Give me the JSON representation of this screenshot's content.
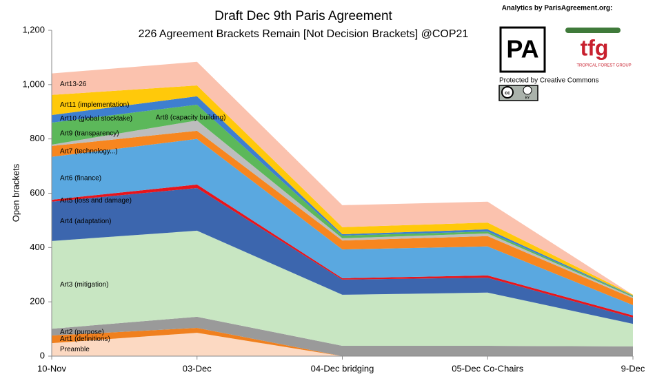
{
  "chart_data": {
    "type": "stacked_area",
    "title": "Draft Dec 9th Paris Agreement",
    "subtitle": "226 Agreement Brackets Remain [Not Decision Brackets] @COP21",
    "y_label": "Open brackets",
    "categories": [
      "10-Nov",
      "03-Dec",
      "04-Dec bridging",
      "05-Dec Co-Chairs",
      "9-Dec"
    ],
    "ylim": [
      0,
      1200
    ],
    "yticks": [
      0,
      200,
      400,
      600,
      800,
      {
        "value": 1000,
        "label": "1,000"
      },
      {
        "value": 1200,
        "label": "1,200"
      }
    ],
    "series": [
      {
        "name": "Preamble",
        "color": "#fcd9c2",
        "values": [
          48,
          86,
          0,
          0,
          0
        ]
      },
      {
        "name": "Art1 (definitions)",
        "color": "#f0801e",
        "values": [
          28,
          18,
          0,
          0,
          0
        ]
      },
      {
        "name": "Art2 (purpose)",
        "color": "#9a9a9a",
        "values": [
          25,
          41,
          38,
          38,
          36
        ]
      },
      {
        "name": "Art3 (mitigation)",
        "color": "#c8e6c2",
        "values": [
          323,
          317,
          188,
          196,
          83
        ]
      },
      {
        "name": "Art4 (adaptation)",
        "color": "#3c66ae",
        "values": [
          145,
          157,
          56,
          55,
          23
        ]
      },
      {
        "name": "Art5 (loss and damage)",
        "color": "#e8151b",
        "values": [
          7,
          13,
          5,
          8,
          8
        ]
      },
      {
        "name": "Art6 (finance)",
        "color": "#5aa8e0",
        "values": [
          158,
          168,
          106,
          107,
          38
        ]
      },
      {
        "name": "Art7 (technology...)",
        "color": "#f7861f",
        "values": [
          40,
          30,
          33,
          38,
          25
        ]
      },
      {
        "name": "Art8 (capacity building)",
        "color": "#bdbdbd",
        "values": [
          5,
          38,
          8,
          10,
          5
        ]
      },
      {
        "name": "Art9 (transparency)",
        "color": "#5cb85a",
        "values": [
          81,
          58,
          10,
          7,
          3
        ]
      },
      {
        "name": "Art10 (global stocktake)",
        "color": "#3e7fd0",
        "values": [
          28,
          31,
          5,
          8,
          2
        ]
      },
      {
        "name": "Art11 (implementation)",
        "color": "#ffc90a",
        "values": [
          74,
          40,
          26,
          25,
          3
        ]
      },
      {
        "name": "Art13-26",
        "color": "#fbc2ae",
        "values": [
          79,
          87,
          81,
          77,
          0
        ]
      }
    ]
  },
  "credits": {
    "analytics": "Analytics by ParisAgreement.org:",
    "logo_pa": "PA",
    "logo_tfg": "tfg",
    "tfg_name": "TROPICAL FOREST GROUP",
    "license": "Protected by Creative Commons",
    "cc": "cc",
    "by": "BY"
  }
}
